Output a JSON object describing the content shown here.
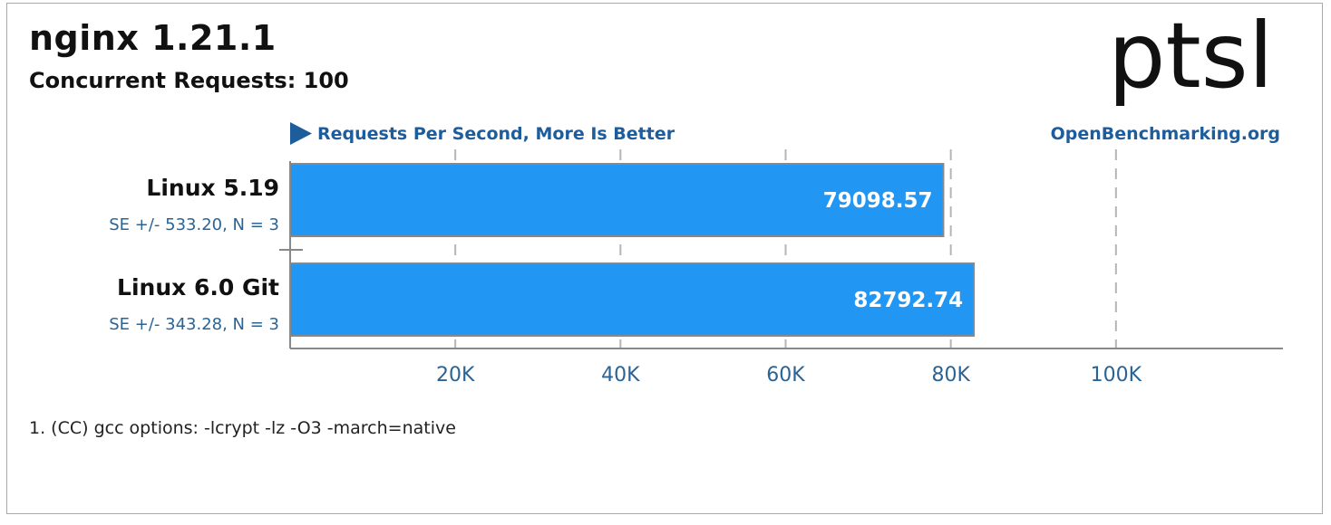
{
  "header": {
    "title": "nginx 1.21.1",
    "subtitle": "Concurrent Requests: 100",
    "logo_text": "ptsl",
    "site": "OpenBenchmarking.org"
  },
  "footnote": "1. (CC) gcc options: -lcrypt -lz -O3 -march=native",
  "chart_data": {
    "type": "bar",
    "orientation": "horizontal",
    "axis_label": "Requests Per Second, More Is Better",
    "xlim": [
      0,
      120000
    ],
    "x_ticks": [
      20000,
      40000,
      60000,
      80000,
      100000
    ],
    "x_tick_labels": [
      "20K",
      "40K",
      "60K",
      "80K",
      "100K"
    ],
    "grid": "vertical dashed",
    "bar_color": "#2196f3",
    "categories": [
      "Linux 5.19",
      "Linux 6.0 Git"
    ],
    "values": [
      79098.57,
      82792.74
    ],
    "value_labels": [
      "79098.57",
      "82792.74"
    ],
    "se_labels": [
      "SE +/- 533.20, N = 3",
      "SE +/- 343.28, N = 3"
    ]
  }
}
